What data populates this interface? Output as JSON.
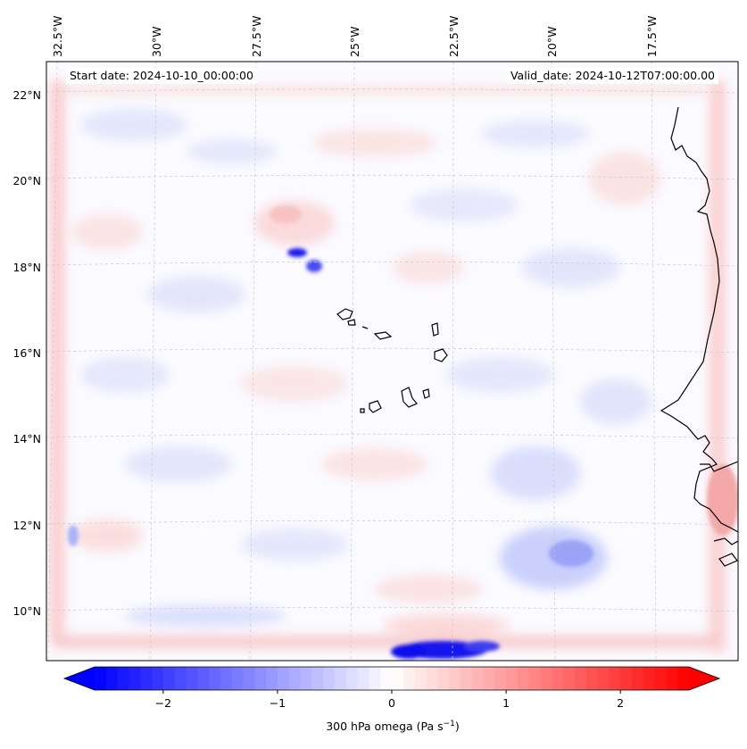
{
  "map": {
    "variable_label": "300 hPa omega (Pa s",
    "variable_unit_exponent": "−1",
    "variable_label_close": ")",
    "start_date_label": "Start date: 2024-10-10_00:00:00",
    "valid_date_label": "Valid_date: 2024-10-12T07:00:00.00",
    "lon_ticks": [
      "32.5°W",
      "30°W",
      "27.5°W",
      "25°W",
      "22.5°W",
      "20°W",
      "17.5°W"
    ],
    "lon_values": [
      -32.5,
      -30,
      -27.5,
      -25,
      -22.5,
      -20,
      -17.5
    ],
    "lat_ticks": [
      "22°N",
      "20°N",
      "18°N",
      "16°N",
      "14°N",
      "12°N",
      "10°N"
    ],
    "lat_values": [
      22,
      20,
      18,
      16,
      14,
      12,
      10
    ],
    "colorbar": {
      "tick_labels": [
        "−2",
        "−1",
        "0",
        "1",
        "2"
      ],
      "tick_values": [
        -2,
        -1,
        0,
        1,
        2
      ],
      "range": [
        -2.6,
        2.6
      ],
      "colors": {
        "min": "#0000ff",
        "mid": "#ffffff",
        "max": "#ff0000"
      },
      "extend": "both"
    },
    "colors": {
      "coastline": "#000000",
      "gridline": "#c8c8c8",
      "background": "#fbfbff"
    }
  }
}
